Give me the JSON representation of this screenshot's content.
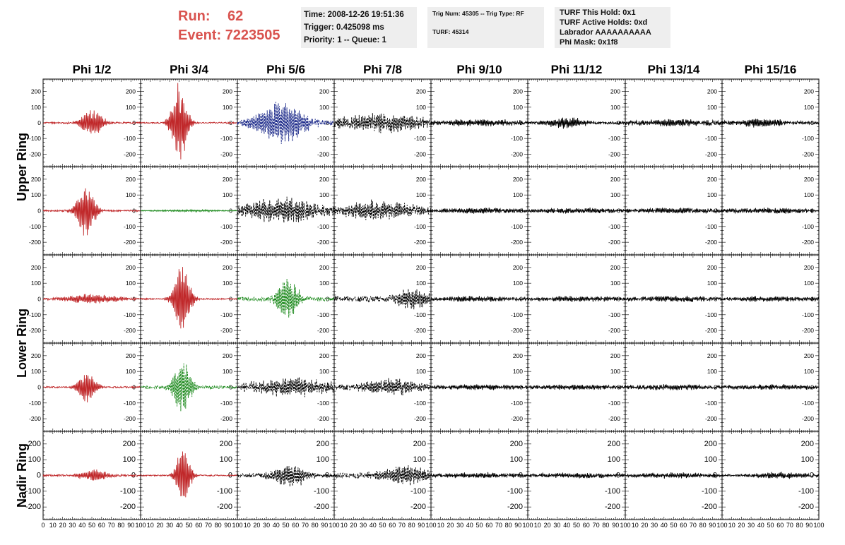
{
  "header": {
    "run_label": "Run:",
    "run_value": "62",
    "event_label": "Event:",
    "event_value": "7223505",
    "time_line": "Time: 2008-12-26 19:51:36",
    "trigger_line": "Trigger: 0.425098 ms",
    "priority_line": "Priority: 1 -- Queue: 1",
    "trig_num_line": "Trig Num: 45305 -- Trig Type: RF",
    "turf_line": "TURF: 45314",
    "turf_hold_line": "TURF This Hold: 0x1",
    "turf_active_line": "TURF Active Holds: 0xd",
    "labrador_line": "Labrador AAAAAAAAAA",
    "phi_mask_line": "Phi Mask: 0x1f8"
  },
  "chart_data": {
    "type": "line",
    "columns": [
      "Phi 1/2",
      "Phi 3/4",
      "Phi 5/6",
      "Phi 7/8",
      "Phi 9/10",
      "Phi 11/12",
      "Phi 13/14",
      "Phi 15/16"
    ],
    "row_labels": [
      {
        "label": "Upper Ring",
        "rows": [
          0,
          1
        ]
      },
      {
        "label": "Lower Ring",
        "rows": [
          2,
          3
        ]
      },
      {
        "label": "Nadir Ring",
        "rows": [
          4
        ]
      }
    ],
    "xlim": [
      0,
      100
    ],
    "ylim": [
      -280,
      280
    ],
    "x_ticks": [
      "0",
      "10",
      "20",
      "30",
      "40",
      "50",
      "60",
      "70",
      "80",
      "90",
      "100"
    ],
    "y_ticks": [
      200,
      100,
      0,
      -100,
      -200
    ],
    "y_tick_labels": [
      "200",
      "100",
      "0",
      "-100",
      "-200"
    ],
    "colors": {
      "red": "#c0282a",
      "blue": "#1c2a8a",
      "green": "#1d8a1d",
      "black": "#000000"
    },
    "panels": [
      [
        {
          "color": "red",
          "dashed": false,
          "peak": 90,
          "pulse_center": 50,
          "pulse_width": 12,
          "noise": 10
        },
        {
          "color": "red",
          "dashed": false,
          "peak": 260,
          "pulse_center": 40,
          "pulse_width": 9,
          "noise": 8
        },
        {
          "color": "blue",
          "dashed": true,
          "peak": 150,
          "pulse_center": 45,
          "pulse_width": 25,
          "noise": 30
        },
        {
          "color": "black",
          "dashed": true,
          "peak": 60,
          "pulse_center": 50,
          "pulse_width": 40,
          "noise": 45
        },
        {
          "color": "black",
          "dashed": false,
          "peak": 20,
          "pulse_center": 50,
          "pulse_width": 50,
          "noise": 18
        },
        {
          "color": "black",
          "dashed": false,
          "peak": 35,
          "pulse_center": 40,
          "pulse_width": 20,
          "noise": 18
        },
        {
          "color": "black",
          "dashed": false,
          "peak": 20,
          "pulse_center": 50,
          "pulse_width": 50,
          "noise": 18
        },
        {
          "color": "black",
          "dashed": false,
          "peak": 25,
          "pulse_center": 40,
          "pulse_width": 30,
          "noise": 18
        }
      ],
      [
        {
          "color": "red",
          "dashed": false,
          "peak": 170,
          "pulse_center": 44,
          "pulse_width": 10,
          "noise": 10
        },
        {
          "color": "green",
          "dashed": false,
          "peak": 6,
          "pulse_center": 50,
          "pulse_width": 50,
          "noise": 3
        },
        {
          "color": "black",
          "dashed": true,
          "peak": 80,
          "pulse_center": 45,
          "pulse_width": 35,
          "noise": 55
        },
        {
          "color": "black",
          "dashed": true,
          "peak": 60,
          "pulse_center": 45,
          "pulse_width": 40,
          "noise": 40
        },
        {
          "color": "black",
          "dashed": false,
          "peak": 15,
          "pulse_center": 50,
          "pulse_width": 50,
          "noise": 14
        },
        {
          "color": "black",
          "dashed": false,
          "peak": 15,
          "pulse_center": 50,
          "pulse_width": 50,
          "noise": 14
        },
        {
          "color": "black",
          "dashed": false,
          "peak": 15,
          "pulse_center": 50,
          "pulse_width": 50,
          "noise": 16
        },
        {
          "color": "black",
          "dashed": false,
          "peak": 15,
          "pulse_center": 50,
          "pulse_width": 50,
          "noise": 16
        }
      ],
      [
        {
          "color": "red",
          "dashed": false,
          "peak": 30,
          "pulse_center": 50,
          "pulse_width": 30,
          "noise": 12
        },
        {
          "color": "red",
          "dashed": false,
          "peak": 230,
          "pulse_center": 43,
          "pulse_width": 9,
          "noise": 8
        },
        {
          "color": "green",
          "dashed": true,
          "peak": 140,
          "pulse_center": 52,
          "pulse_width": 12,
          "noise": 25
        },
        {
          "color": "black",
          "dashed": true,
          "peak": 70,
          "pulse_center": 80,
          "pulse_width": 18,
          "noise": 35
        },
        {
          "color": "black",
          "dashed": false,
          "peak": 15,
          "pulse_center": 50,
          "pulse_width": 50,
          "noise": 15
        },
        {
          "color": "black",
          "dashed": false,
          "peak": 15,
          "pulse_center": 50,
          "pulse_width": 50,
          "noise": 15
        },
        {
          "color": "black",
          "dashed": false,
          "peak": 15,
          "pulse_center": 50,
          "pulse_width": 50,
          "noise": 17
        },
        {
          "color": "black",
          "dashed": false,
          "peak": 15,
          "pulse_center": 50,
          "pulse_width": 50,
          "noise": 15
        }
      ],
      [
        {
          "color": "red",
          "dashed": false,
          "peak": 100,
          "pulse_center": 45,
          "pulse_width": 10,
          "noise": 10
        },
        {
          "color": "green",
          "dashed": true,
          "peak": 170,
          "pulse_center": 43,
          "pulse_width": 10,
          "noise": 20
        },
        {
          "color": "black",
          "dashed": true,
          "peak": 60,
          "pulse_center": 55,
          "pulse_width": 40,
          "noise": 40
        },
        {
          "color": "black",
          "dashed": true,
          "peak": 50,
          "pulse_center": 60,
          "pulse_width": 35,
          "noise": 30
        },
        {
          "color": "black",
          "dashed": false,
          "peak": 15,
          "pulse_center": 50,
          "pulse_width": 50,
          "noise": 14
        },
        {
          "color": "black",
          "dashed": false,
          "peak": 15,
          "pulse_center": 50,
          "pulse_width": 50,
          "noise": 14
        },
        {
          "color": "black",
          "dashed": false,
          "peak": 15,
          "pulse_center": 50,
          "pulse_width": 50,
          "noise": 16
        },
        {
          "color": "black",
          "dashed": false,
          "peak": 15,
          "pulse_center": 50,
          "pulse_width": 50,
          "noise": 16
        }
      ],
      [
        {
          "color": "red",
          "dashed": false,
          "peak": 40,
          "pulse_center": 52,
          "pulse_width": 15,
          "noise": 12
        },
        {
          "color": "red",
          "dashed": false,
          "peak": 200,
          "pulse_center": 44,
          "pulse_width": 8,
          "noise": 8
        },
        {
          "color": "black",
          "dashed": true,
          "peak": 70,
          "pulse_center": 55,
          "pulse_width": 20,
          "noise": 25
        },
        {
          "color": "black",
          "dashed": true,
          "peak": 60,
          "pulse_center": 75,
          "pulse_width": 30,
          "noise": 30
        },
        {
          "color": "black",
          "dashed": false,
          "peak": 15,
          "pulse_center": 50,
          "pulse_width": 50,
          "noise": 14
        },
        {
          "color": "black",
          "dashed": false,
          "peak": 15,
          "pulse_center": 50,
          "pulse_width": 50,
          "noise": 14
        },
        {
          "color": "black",
          "dashed": false,
          "peak": 15,
          "pulse_center": 50,
          "pulse_width": 50,
          "noise": 14
        },
        {
          "color": "black",
          "dashed": false,
          "peak": 20,
          "pulse_center": 60,
          "pulse_width": 30,
          "noise": 14
        }
      ]
    ]
  }
}
